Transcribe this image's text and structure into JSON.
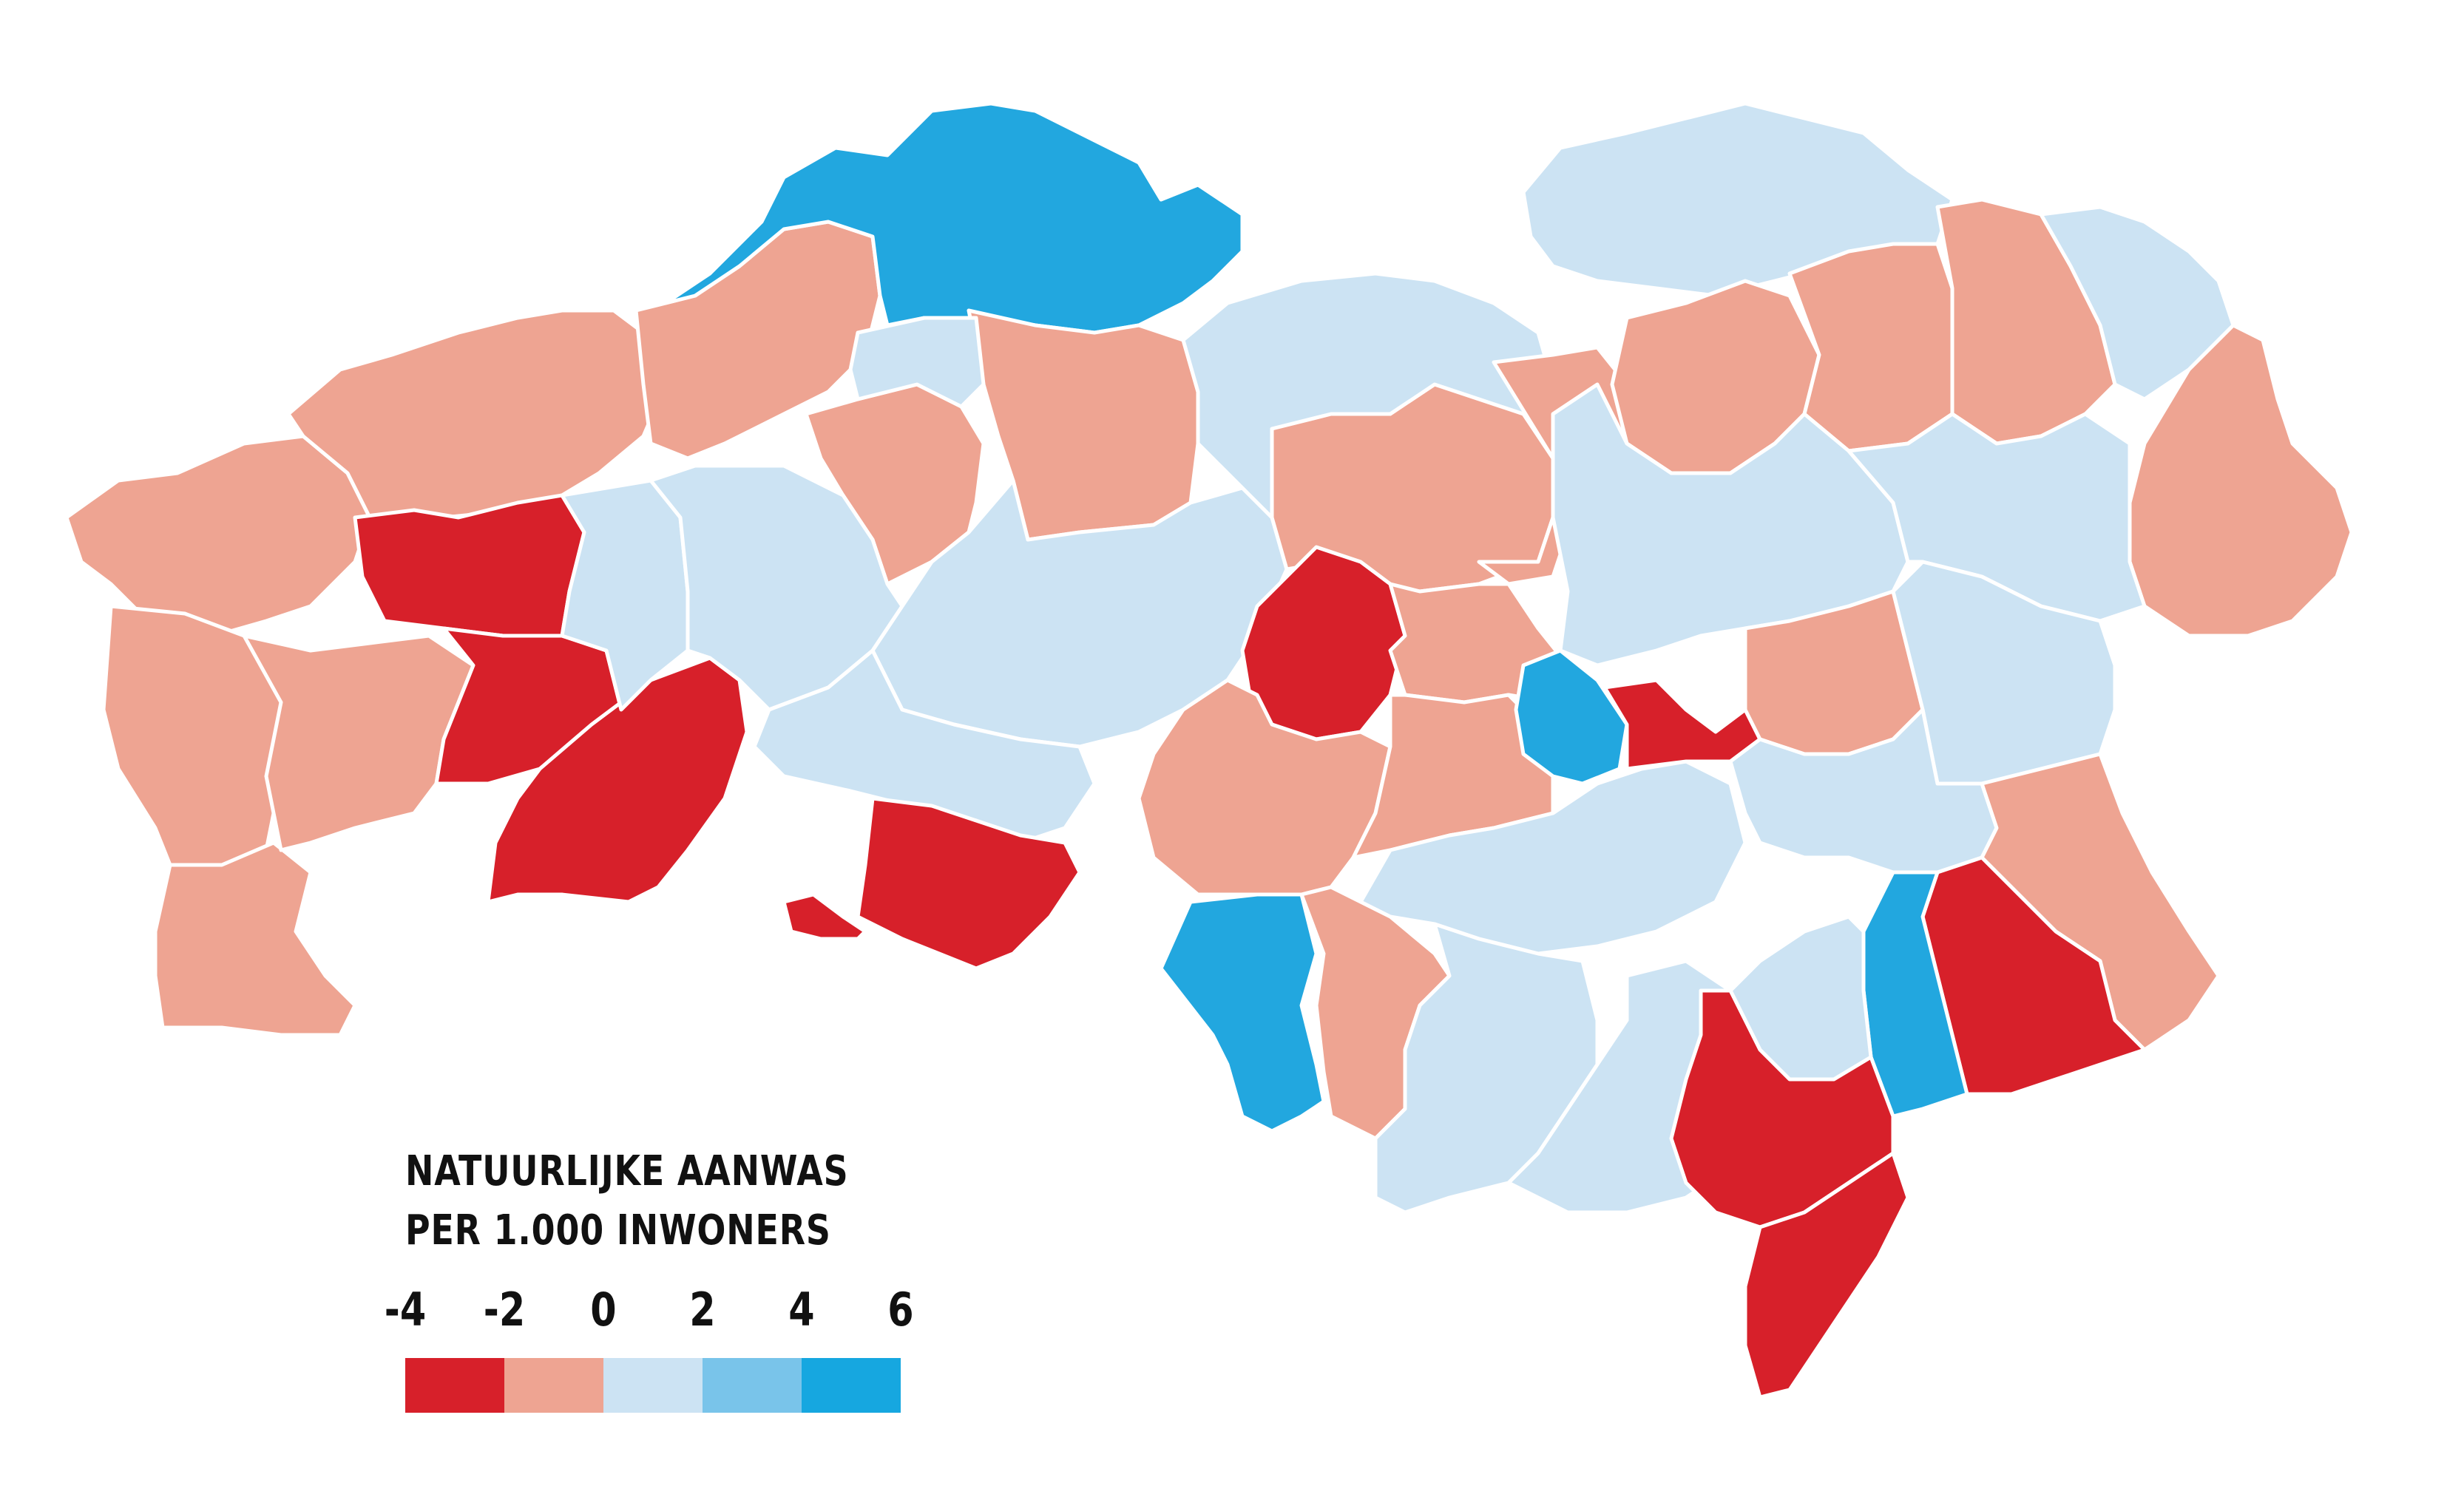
{
  "legend": {
    "title_line1": "NATUURLIJKE AANWAS",
    "title_line2": "PER 1.000 INWONERS",
    "ticks": [
      "-4",
      "-2",
      "0",
      "2",
      "4",
      "6"
    ],
    "classes": [
      {
        "from": -4,
        "to": -2,
        "color": "#d7202a"
      },
      {
        "from": -2,
        "to": 0,
        "color": "#eea492"
      },
      {
        "from": 0,
        "to": 2,
        "color": "#cce3f3"
      },
      {
        "from": 2,
        "to": 4,
        "color": "#79c4ea"
      },
      {
        "from": 4,
        "to": 6,
        "color": "#16a7e0"
      }
    ]
  },
  "colors": {
    "strong_negative": "#d7202a",
    "negative": "#eea492",
    "slight_positive": "#cce3f3",
    "positive": "#79c4ea",
    "strong_positive": "#22a7df",
    "border": "#ffffff"
  },
  "regions": [
    {
      "id": "west-coast-a",
      "class": "negative"
    },
    {
      "id": "west-coast-b",
      "class": "negative"
    },
    {
      "id": "west-coast-c",
      "class": "negative"
    },
    {
      "id": "west-south-a",
      "class": "negative"
    },
    {
      "id": "west-red-a",
      "class": "strong_negative"
    },
    {
      "id": "west-red-b",
      "class": "strong_negative"
    },
    {
      "id": "west-red-c",
      "class": "strong_negative"
    },
    {
      "id": "north-water",
      "class": "strong_positive"
    },
    {
      "id": "north-pink-a",
      "class": "negative"
    },
    {
      "id": "north-pink-b",
      "class": "negative"
    },
    {
      "id": "north-pink-c",
      "class": "negative"
    },
    {
      "id": "mid-light-a",
      "class": "slight_positive"
    },
    {
      "id": "mid-light-b",
      "class": "slight_positive"
    },
    {
      "id": "mid-light-c",
      "class": "slight_positive"
    },
    {
      "id": "mid-light-d",
      "class": "slight_positive"
    },
    {
      "id": "south-red-a",
      "class": "strong_negative"
    },
    {
      "id": "south-red-b",
      "class": "strong_negative"
    },
    {
      "id": "center-red",
      "class": "strong_negative"
    },
    {
      "id": "center-pink-a",
      "class": "negative"
    },
    {
      "id": "center-pink-b",
      "class": "negative"
    },
    {
      "id": "center-pink-c",
      "class": "negative"
    },
    {
      "id": "center-light-a",
      "class": "slight_positive"
    },
    {
      "id": "center-light-b",
      "class": "slight_positive"
    },
    {
      "id": "southwest-blue",
      "class": "strong_positive"
    },
    {
      "id": "south-pink",
      "class": "negative"
    },
    {
      "id": "south-light-a",
      "class": "slight_positive"
    },
    {
      "id": "south-light-b",
      "class": "slight_positive"
    },
    {
      "id": "city-blue",
      "class": "strong_positive"
    },
    {
      "id": "city-red",
      "class": "strong_negative"
    },
    {
      "id": "east-light-a",
      "class": "slight_positive"
    },
    {
      "id": "east-light-b",
      "class": "slight_positive"
    },
    {
      "id": "east-light-c",
      "class": "slight_positive"
    },
    {
      "id": "east-pink-a",
      "class": "negative"
    },
    {
      "id": "east-pink-b",
      "class": "negative"
    },
    {
      "id": "east-pink-c",
      "class": "negative"
    },
    {
      "id": "east-pink-d",
      "class": "negative"
    },
    {
      "id": "far-east-pink",
      "class": "negative"
    },
    {
      "id": "se-red-a",
      "class": "strong_negative"
    },
    {
      "id": "se-red-b",
      "class": "strong_negative"
    },
    {
      "id": "se-red-c",
      "class": "strong_negative"
    },
    {
      "id": "se-blue",
      "class": "strong_positive"
    },
    {
      "id": "se-pink",
      "class": "negative"
    },
    {
      "id": "se-light",
      "class": "slight_positive"
    }
  ]
}
